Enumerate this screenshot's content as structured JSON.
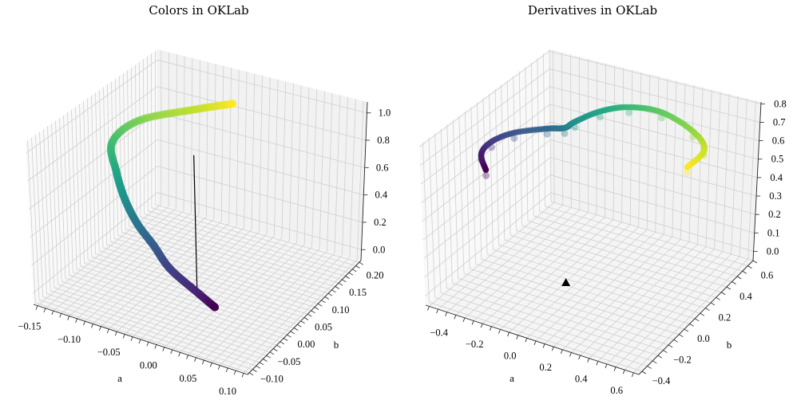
{
  "colormap": "viridis",
  "chart_data": [
    {
      "type": "scatter3d",
      "title": "Colors in OKLab",
      "xlabel": "a",
      "ylabel": "b",
      "zlabel": "",
      "xlim": [
        -0.155,
        0.115
      ],
      "ylim": [
        -0.115,
        0.215
      ],
      "zlim": [
        -0.08,
        1.08
      ],
      "xticks": [
        "-0.15",
        "-0.10",
        "-0.05",
        "0.00",
        "0.05",
        "0.10"
      ],
      "yticks": [
        "-0.10",
        "-0.05",
        "0.00",
        "0.05",
        "0.10",
        "0.15",
        "0.20"
      ],
      "zticks": [
        "0.0",
        "0.2",
        "0.4",
        "0.6",
        "0.8",
        "1.0"
      ],
      "grid": true,
      "points": [
        [
          0.07,
          -0.1,
          0.27
        ],
        [
          0.05,
          -0.1,
          0.33
        ],
        [
          0.01,
          -0.09,
          0.41
        ],
        [
          -0.02,
          -0.07,
          0.48
        ],
        [
          -0.05,
          -0.05,
          0.54
        ],
        [
          -0.08,
          -0.02,
          0.6
        ],
        [
          -0.11,
          0.02,
          0.66
        ],
        [
          -0.14,
          0.07,
          0.72
        ],
        [
          -0.13,
          0.12,
          0.79
        ],
        [
          -0.08,
          0.16,
          0.86
        ],
        [
          -0.04,
          0.18,
          0.92
        ]
      ],
      "line": [
        [
          0,
          0,
          0
        ],
        [
          0,
          0,
          1
        ]
      ]
    },
    {
      "type": "scatter3d",
      "title": "Derivatives in OKLab",
      "xlabel": "a",
      "ylabel": "b",
      "zlabel": "",
      "xlim": [
        -0.52,
        0.68
      ],
      "ylim": [
        -0.43,
        0.65
      ],
      "zlim": [
        -0.05,
        0.81
      ],
      "xticks": [
        "-0.4",
        "-0.2",
        "0.0",
        "0.2",
        "0.4",
        "0.6"
      ],
      "yticks": [
        "-0.4",
        "-0.2",
        "0.0",
        "0.2",
        "0.4",
        "0.6"
      ],
      "zticks": [
        "0.0",
        "0.1",
        "0.2",
        "0.3",
        "0.4",
        "0.5",
        "0.6",
        "0.7",
        "0.8"
      ],
      "grid": true,
      "points": [
        [
          -0.48,
          0.05,
          0.45
        ],
        [
          -0.515,
          0.065,
          0.52
        ],
        [
          -0.48,
          0.1,
          0.58
        ],
        [
          -0.395,
          0.166,
          0.62
        ],
        [
          -0.26,
          0.243,
          0.64
        ],
        [
          -0.18,
          0.273,
          0.65
        ],
        [
          -0.14,
          0.3,
          0.68
        ],
        [
          -0.05,
          0.38,
          0.72
        ],
        [
          0.06,
          0.46,
          0.73
        ],
        [
          0.2,
          0.53,
          0.7
        ],
        [
          0.36,
          0.56,
          0.62
        ],
        [
          0.44,
          0.54,
          0.55
        ],
        [
          0.39,
          0.47,
          0.48
        ]
      ],
      "marker": {
        "shape": "triangle",
        "position": [
          0,
          0,
          0
        ],
        "color": "#000000"
      }
    }
  ]
}
